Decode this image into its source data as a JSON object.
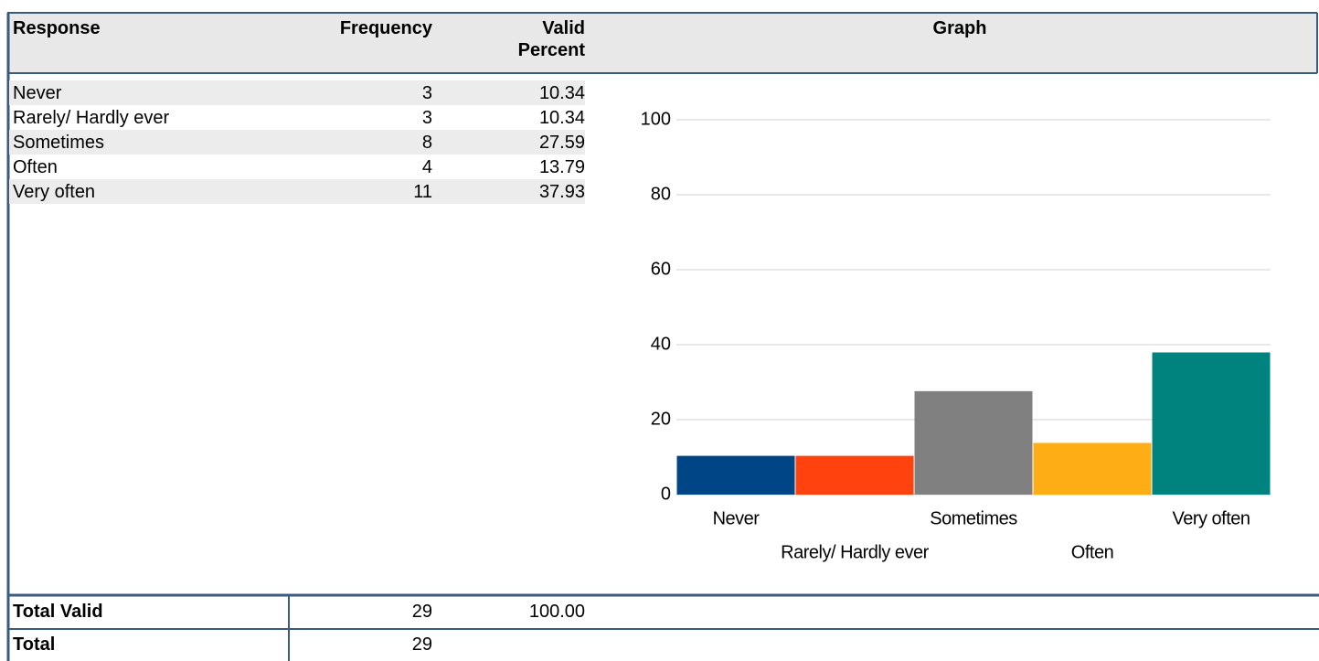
{
  "table": {
    "headers": [
      "Response",
      "Frequency",
      "Valid Percent",
      "Graph"
    ],
    "rows": [
      [
        "Never",
        "3",
        "10.34"
      ],
      [
        "Rarely/ Hardly ever",
        "3",
        "10.34"
      ],
      [
        "Sometimes",
        "8",
        "27.59"
      ],
      [
        "Often",
        "4",
        "13.79"
      ],
      [
        "Very often",
        "11",
        "37.93"
      ]
    ],
    "totals": [
      [
        "Total Valid",
        "29",
        "100.00"
      ],
      [
        "Total",
        "29"
      ]
    ]
  },
  "chart_data": {
    "type": "bar",
    "categories": [
      "Never",
      "Rarely/ Hardly ever",
      "Sometimes",
      "Often",
      "Very often"
    ],
    "values": [
      10.34,
      10.34,
      27.59,
      13.79,
      37.93
    ],
    "colors": [
      "#004586",
      "#ff420e",
      "#808080",
      "#ffad14",
      "#00837e"
    ],
    "ylim": [
      0,
      100
    ],
    "yticks": [
      0,
      20,
      40,
      60,
      80,
      100
    ],
    "grid": true
  }
}
